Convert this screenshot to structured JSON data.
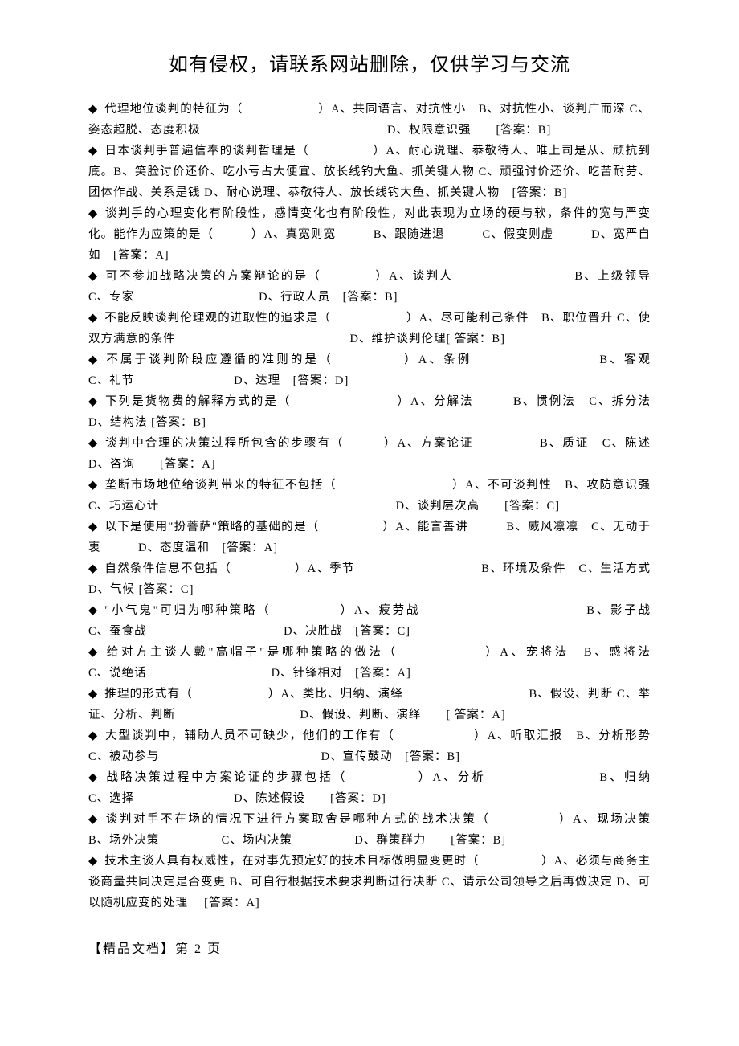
{
  "header": "如有侵权，请联系网站删除，仅供学习与交流",
  "diamond": "◆",
  "questions": [
    "代理地位谈判的特征为（　　　　　　）A、共同语言、对抗性小　B、对抗性小、谈判广而深 C、姿态超脱、态度积极　　　　　　　　　　　　　　　D、权限意识强　　[答案：B]",
    "日本谈判手普遍信奉的谈判哲理是（　　　　　）A、耐心说理、恭敬待人、唯上司是从、顽抗到底。B、笑脸讨价还价、吃小亏占大便宜、放长线钓大鱼、抓关键人物 C、顽强讨价还价、吃苦耐劳、团体作战、关系是钱 D、耐心说理、恭敬待人、放长线钓大鱼、抓关键人物　[答案：B]",
    "谈判手的心理变化有阶段性，感情变化也有阶段性，对此表现为立场的硬与软，条件的宽与严变化。能作为应策的是（　　　）A、真宽则宽　　　B、跟随进退　　　C、假变则虚　　　D、宽严自如　[答案：A]",
    "可不参加战略决策的方案辩论的是（　　　　）A、谈判人　　　　　　　　　B、上级领导　　　　　　C、专家　　　　　　　　　　D、行政人员　[答案：B]",
    "不能反映谈判伦理观的进取性的追求是（　　　　　　）A、尽可能利己条件　B、职位晋升 C、使双方满意的条件　　　　　　　　　　　　　　D、维护谈判伦理[ 答案：B]",
    "不属于谈判阶段应遵循的准则的是（　　　　　）A、条例　　　　　　　　　B、客观　　　　　　　C、礼节　　　　　　　　D、达理　[答案：D]",
    "下列是货物费的解释方式的是（　　　　　　　　）A、分解法　　　B、惯例法　C、拆分法　　　　　　D、结构法 [答案：B]",
    "谈判中合理的决策过程所包含的步骤有（　　　）A、方案论证　　　　　B、质证　C、陈述　　　　　　　　　　D、咨询　　[答案：A]",
    "垄断市场地位给谈判带来的特征不包括（　　　　　　　　　）A、不可谈判性　B、攻防意识强　C、巧运心计　　　　　　　　　　　　　　　　　　　D、谈判层次高　　[答案：C]",
    "以下是使用\"扮菩萨\"策略的基础的是（　　　　　）A、能言善讲　　　B、威风凛凛　C、无动于衷　　　D、态度温和　[答案：A]",
    "自然条件信息不包括（　　　　　）A、季节　　　　　　　　　　B、环境及条件　C、生活方式　　　　D、气候 [答案：C]",
    "\"小气鬼\"可归为哪种策略（　　　　　）A、疲劳战　　　　　　　　　　　　B、影子战　　　　　　　　　C、蚕食战　　　　　　　　　　　D、决胜战　[答案：C]",
    "给对方主谈人戴\"高帽子\"是哪种策略的做法（　　　　　　）A、宠将法　B、感将法　　　　　　　　　C、说绝话　　　　　　　　　　D、针锋相对　[答案：A]",
    "推理的形式有（　　　　　　）A、类比、归纳、演绎　　　　　　　　　　B、假设、判断 C、举证、分析、判断　　　　　　　　　　D、假设、判断、演绎　　[ 答案：A]",
    "大型谈判中，辅助人员不可缺少，他们的工作有（　　　　　　）A、听取汇报　B、分析形势　　　C、被动参与　　　　　　　　　　　　　D、宣传鼓动　[答案：B]",
    "战略决策过程中方案论证的步骤包括（　　　　　）A、分析　　　　　　　　B、归纳　　　　　　　C、选择　　　　　　　　D、陈述假设　　[答案：D]",
    "谈判对手不在场的情况下进行方案取舍是哪种方式的战术决策（　　　　　）A、现场决策　　　　　B、场外决策　　　　　C、场内决策　　　　　D、群策群力　　[答案：B]",
    "技术主谈人具有权威性，在对事先预定好的技术目标做明显变更时（　　　　　）A、必须与商务主谈商量共同决定是否变更 B、可自行根据技术要求判断进行决断 C、请示公司领导之后再做决定 D、可以随机应变的处理　 [答案：A]"
  ],
  "footer": "【精品文档】第 2 页"
}
